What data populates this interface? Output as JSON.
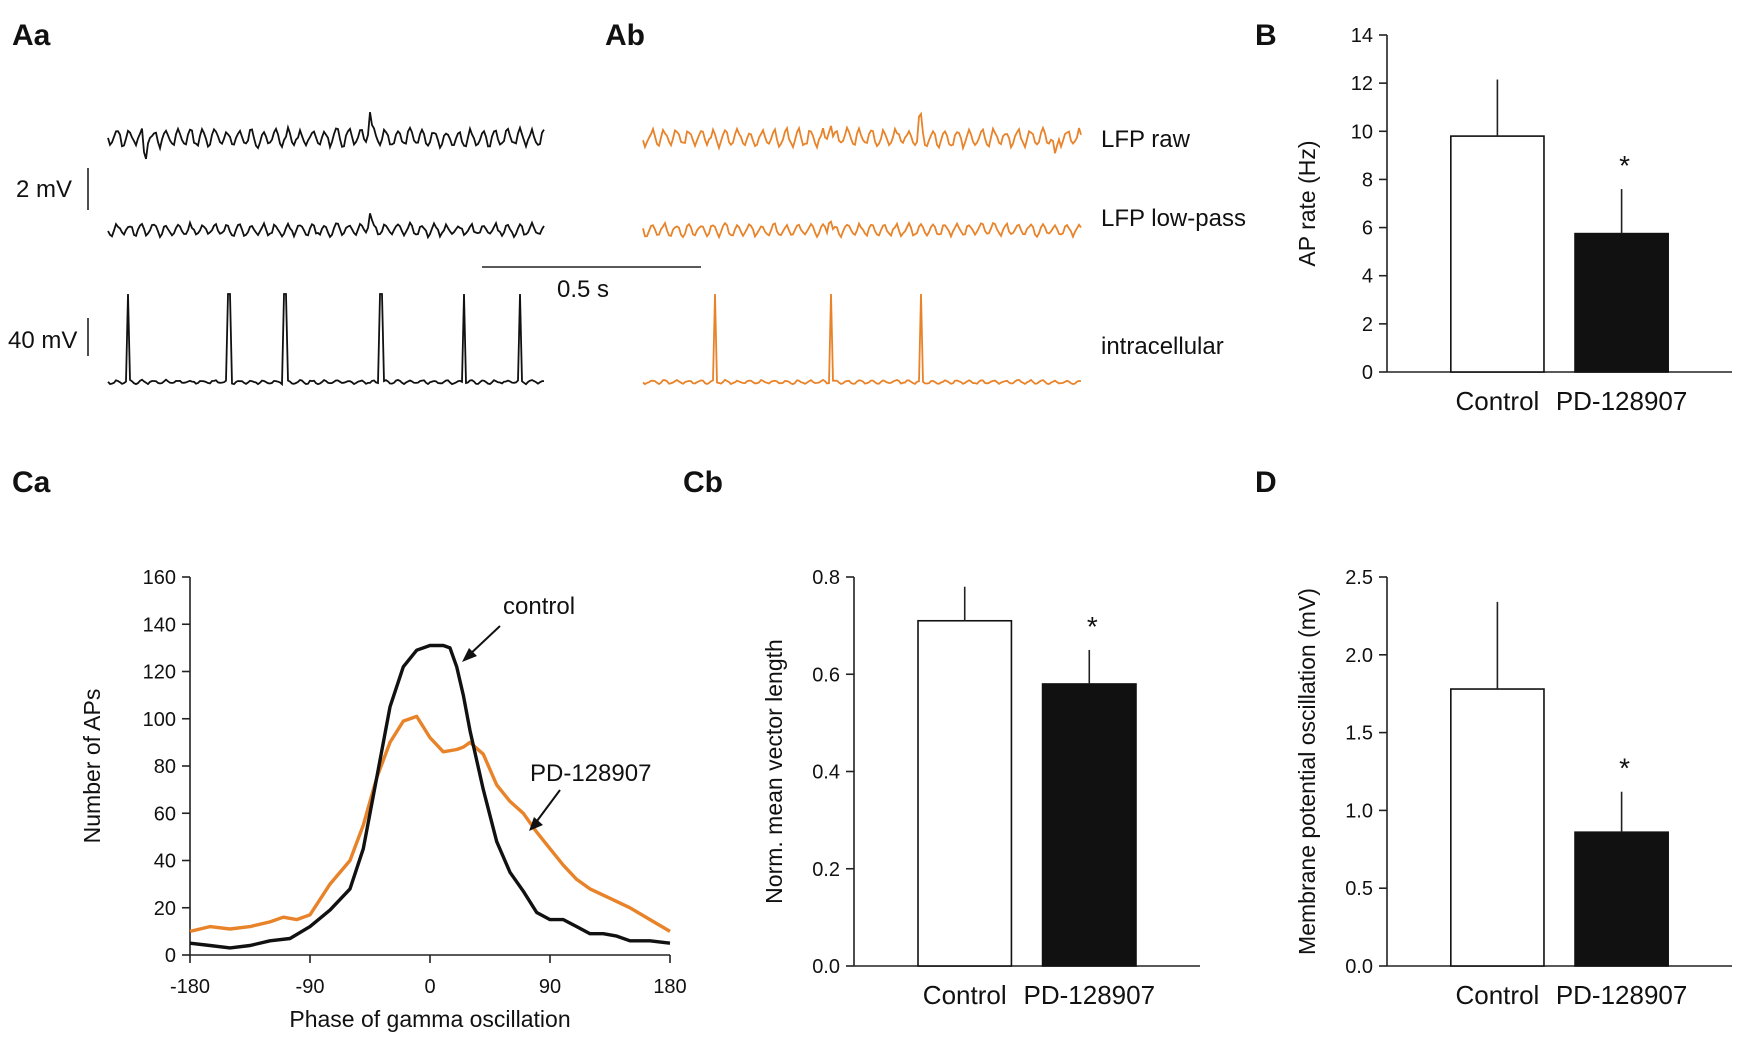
{
  "panel_labels": {
    "Aa": "Aa",
    "Ab": "Ab",
    "B": "B",
    "Ca": "Ca",
    "Cb": "Cb",
    "D": "D"
  },
  "colors": {
    "control": "#111111",
    "drug": "#E8832A",
    "bar_control": "#ffffff",
    "bar_drug": "#111111"
  },
  "traces": {
    "labels": {
      "raw": "LFP raw",
      "lowpass": "LFP low-pass",
      "intracellular": "intracellular"
    },
    "scale_lfp": "2 mV",
    "scale_intra": "40 mV",
    "scale_time": "0.5 s"
  },
  "annotations": {
    "control": "control",
    "drug": "PD-128907",
    "significance": "*"
  },
  "chart_data": [
    {
      "id": "B",
      "type": "bar",
      "categories": [
        "Control",
        "PD-128907"
      ],
      "values": [
        9.8,
        5.75
      ],
      "errors": [
        2.35,
        1.85
      ],
      "ylabel": "AP rate (Hz)",
      "ylim": [
        0,
        14
      ],
      "yticks": [
        "0",
        "2",
        "4",
        "6",
        "8",
        "10",
        "12",
        "14"
      ],
      "significant": [
        false,
        true
      ]
    },
    {
      "id": "Ca",
      "type": "line",
      "xlabel": "Phase of gamma oscillation",
      "ylabel": "Number of APs",
      "xlim": [
        -180,
        180
      ],
      "ylim": [
        0,
        160
      ],
      "xticks": [
        "-180",
        "-90",
        "0",
        "90",
        "180"
      ],
      "yticks": [
        "0",
        "20",
        "40",
        "60",
        "80",
        "100",
        "120",
        "140",
        "160"
      ],
      "series": [
        {
          "name": "control",
          "x": [
            -180,
            -165,
            -150,
            -135,
            -120,
            -105,
            -90,
            -75,
            -60,
            -50,
            -40,
            -30,
            -20,
            -10,
            0,
            10,
            15,
            20,
            25,
            30,
            40,
            50,
            60,
            70,
            80,
            90,
            100,
            110,
            120,
            130,
            140,
            150,
            165,
            180
          ],
          "y": [
            5,
            4,
            3,
            4,
            6,
            7,
            12,
            19,
            28,
            45,
            75,
            105,
            122,
            129,
            131,
            131,
            130,
            122,
            110,
            95,
            70,
            48,
            35,
            27,
            18,
            15,
            15,
            12,
            9,
            9,
            8,
            6,
            6,
            5
          ]
        },
        {
          "name": "PD-128907",
          "x": [
            -180,
            -165,
            -150,
            -135,
            -120,
            -110,
            -100,
            -90,
            -75,
            -60,
            -50,
            -40,
            -30,
            -20,
            -10,
            0,
            10,
            20,
            25,
            30,
            40,
            50,
            60,
            70,
            80,
            90,
            100,
            110,
            120,
            135,
            150,
            165,
            180
          ],
          "y": [
            10,
            12,
            11,
            12,
            14,
            16,
            15,
            17,
            30,
            40,
            55,
            75,
            90,
            99,
            101,
            92,
            86,
            87,
            88,
            90,
            85,
            72,
            65,
            60,
            52,
            45,
            38,
            32,
            28,
            24,
            20,
            15,
            10
          ]
        }
      ]
    },
    {
      "id": "Cb",
      "type": "bar",
      "categories": [
        "Control",
        "PD-128907"
      ],
      "values": [
        0.71,
        0.58
      ],
      "errors": [
        0.07,
        0.07
      ],
      "ylabel": "Norm. mean vector length",
      "ylim": [
        0,
        0.8
      ],
      "yticks": [
        "0.0",
        "0.2",
        "0.4",
        "0.6",
        "0.8"
      ],
      "significant": [
        false,
        true
      ]
    },
    {
      "id": "D",
      "type": "bar",
      "categories": [
        "Control",
        "PD-128907"
      ],
      "values": [
        1.78,
        0.86
      ],
      "errors": [
        0.56,
        0.26
      ],
      "ylabel": "Membrane potential oscillation (mV)",
      "ylim": [
        0,
        2.5
      ],
      "yticks": [
        "0.0",
        "0.5",
        "1.0",
        "1.5",
        "2.0",
        "2.5"
      ],
      "significant": [
        false,
        true
      ]
    }
  ]
}
